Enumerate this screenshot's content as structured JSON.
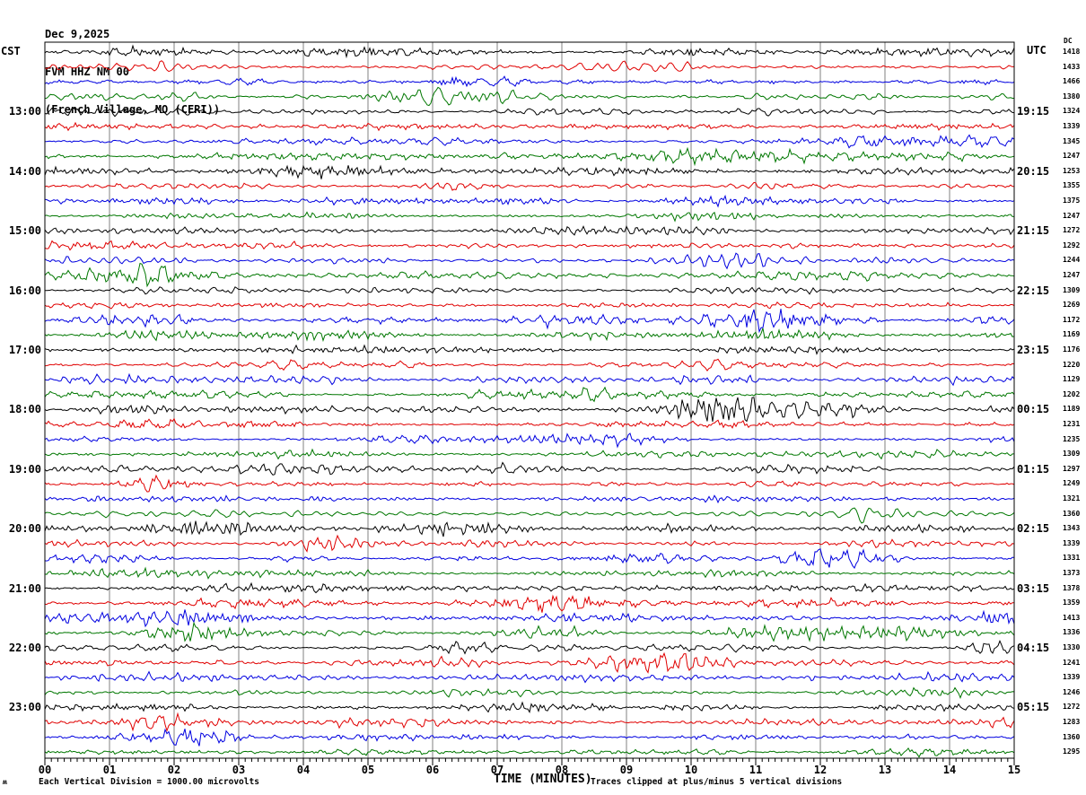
{
  "title": {
    "line1": "Dec 9,2025",
    "line2": "FVM HHZ NM 00",
    "line3": "(French Village, MO (CERI))"
  },
  "headers": {
    "left": "CST",
    "right": "UTC",
    "right_sub": "DC"
  },
  "x_axis": {
    "label": "TIME (MINUTES)",
    "ticks": [
      "00",
      "01",
      "02",
      "03",
      "04",
      "05",
      "06",
      "07",
      "08",
      "09",
      "10",
      "11",
      "12",
      "13",
      "14",
      "15"
    ]
  },
  "left_time_labels": [
    "13:00",
    "14:00",
    "15:00",
    "16:00",
    "17:00",
    "18:00",
    "19:00",
    "20:00",
    "21:00",
    "22:00",
    "23:00"
  ],
  "right_time_labels": [
    "19:15",
    "20:15",
    "21:15",
    "22:15",
    "23:15",
    "00:15",
    "01:15",
    "02:15",
    "03:15",
    "04:15",
    "05:15"
  ],
  "dc_values": [
    1418,
    1433,
    1466,
    1380,
    1324,
    1339,
    1345,
    1247,
    1253,
    1355,
    1375,
    1247,
    1272,
    1292,
    1244,
    1247,
    1309,
    1269,
    1172,
    1169,
    1176,
    1220,
    1129,
    1202,
    1189,
    1231,
    1235,
    1309,
    1297,
    1249,
    1321,
    1360,
    1343,
    1339,
    1331,
    1373,
    1378,
    1359,
    1413,
    1336,
    1330,
    1241,
    1339,
    1246,
    1272,
    1283,
    1360,
    1295
  ],
  "footer": {
    "left": "Each Vertical Division = 1000.00 microvolts",
    "right": "Traces clipped at plus/minus 5 vertical divisions",
    "corner_glyph": "ʍ"
  },
  "colors": {
    "trace_cycle": [
      "#000000",
      "#e00000",
      "#0000e0",
      "#007700"
    ],
    "grid": "#808080",
    "border": "#000000",
    "background": "#ffffff"
  },
  "chart_data": {
    "type": "seismogram-helicorder",
    "title": "Dec 9,2025 — FVM HHZ NM 00 — (French Village, MO (CERI))",
    "date": "Dec 9,2025",
    "station": "FVM HHZ NM 00",
    "station_location": "French Village, MO (CERI)",
    "left_timezone": "CST",
    "right_timezone": "UTC",
    "xlabel": "TIME (MINUTES)",
    "x_range_minutes": [
      0,
      15
    ],
    "x_tick_labels": [
      "00",
      "01",
      "02",
      "03",
      "04",
      "05",
      "06",
      "07",
      "08",
      "09",
      "10",
      "11",
      "12",
      "13",
      "14",
      "15"
    ],
    "minutes_per_row": 15,
    "num_rows": 48,
    "trace_color_cycle": [
      "black",
      "red",
      "blue",
      "green"
    ],
    "cst_hour_label_rows": [
      4,
      8,
      12,
      16,
      20,
      24,
      28,
      32,
      36,
      40,
      44
    ],
    "cst_hour_labels": [
      "13:00",
      "14:00",
      "15:00",
      "16:00",
      "17:00",
      "18:00",
      "19:00",
      "20:00",
      "21:00",
      "22:00",
      "23:00"
    ],
    "utc_row_end_labels": [
      "19:15",
      "20:15",
      "21:15",
      "22:15",
      "23:15",
      "00:15",
      "01:15",
      "02:15",
      "03:15",
      "04:15",
      "05:15"
    ],
    "dc_offsets_microvolts": [
      1418,
      1433,
      1466,
      1380,
      1324,
      1339,
      1345,
      1247,
      1253,
      1355,
      1375,
      1247,
      1272,
      1292,
      1244,
      1247,
      1309,
      1269,
      1172,
      1169,
      1176,
      1220,
      1129,
      1202,
      1189,
      1231,
      1235,
      1309,
      1297,
      1249,
      1321,
      1360,
      1343,
      1339,
      1331,
      1373,
      1378,
      1359,
      1413,
      1336,
      1330,
      1241,
      1339,
      1246,
      1272,
      1283,
      1360,
      1295
    ],
    "amplitude_scale": "Each Vertical Division = 1000.00 microvolts",
    "clipping": "Traces clipped at plus/minus 5 vertical divisions",
    "grid": "vertical gray lines at each minute",
    "content_note": "continuous ambient seismic noise, no discrete labeled events"
  }
}
